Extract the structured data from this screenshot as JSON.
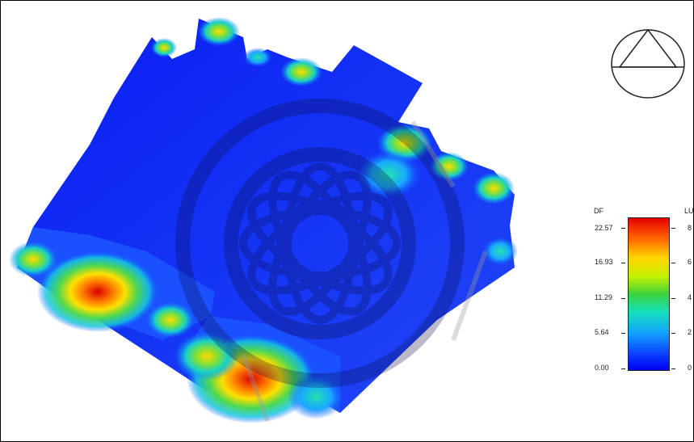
{
  "legend": {
    "left_title": "DF",
    "right_title": "LU",
    "df_ticks": [
      "22.57",
      "16.93",
      "11.29",
      "5.64",
      "0.00"
    ],
    "right_ticks": [
      "8",
      "6",
      "4",
      "2",
      "0"
    ]
  },
  "colors": {
    "low": "#0000f0",
    "mid_low": "#14a0ff",
    "mid": "#3cd23c",
    "mid_high": "#ffd400",
    "high": "#e60000"
  },
  "icons": [
    "compass-icon",
    "watermark-icon"
  ]
}
